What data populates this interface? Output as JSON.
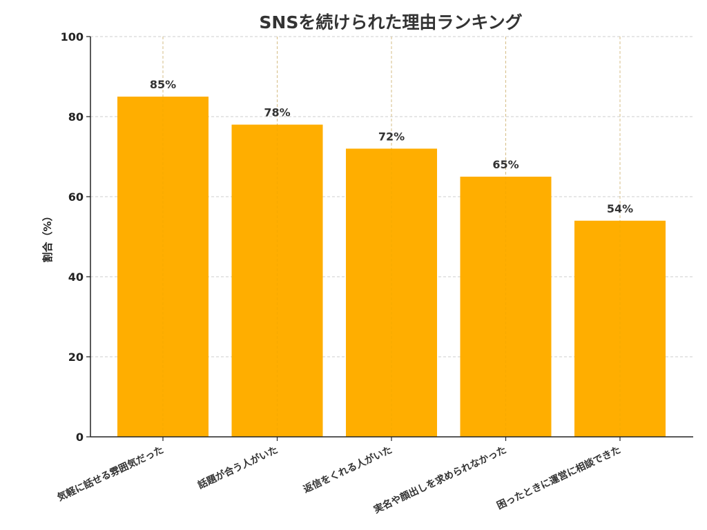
{
  "chart_data": {
    "type": "bar",
    "title": "SNSを続けられた理由ランキング",
    "xlabel": "",
    "ylabel": "割合（%）",
    "ylim": [
      0,
      100
    ],
    "yticks": [
      0,
      20,
      40,
      60,
      80,
      100
    ],
    "categories": [
      "気軽に話せる雰囲気だった",
      "話題が合う人がいた",
      "返信をくれる人がいた",
      "実名や顔出しを求められなかった",
      "困ったときに運営に相談できた"
    ],
    "values": [
      85,
      78,
      72,
      65,
      54
    ],
    "value_labels": [
      "85%",
      "78%",
      "72%",
      "65%",
      "54%"
    ],
    "grid": true,
    "bar_color": "#FFAE00"
  }
}
